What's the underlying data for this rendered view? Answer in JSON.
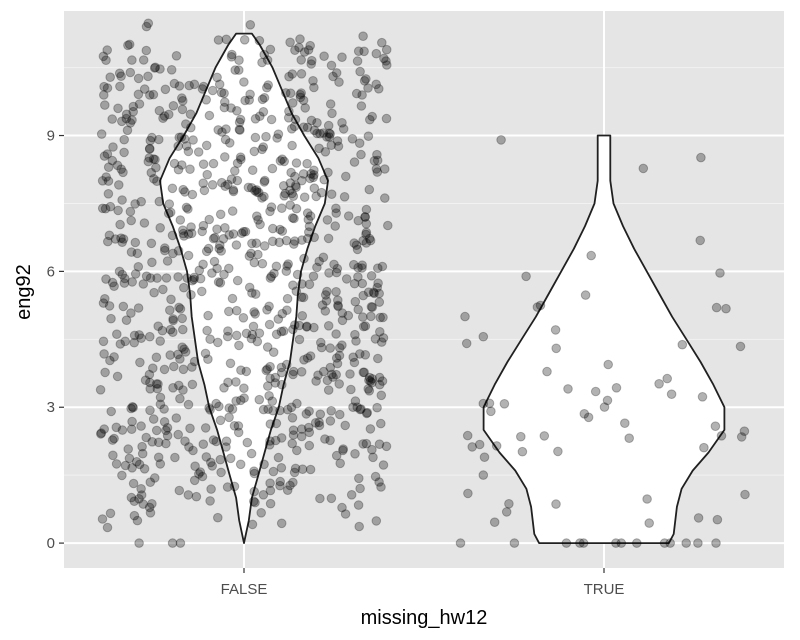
{
  "chart_data": {
    "type": "violin",
    "xlabel": "missing_hw12",
    "ylabel": "eng92",
    "categories": [
      "FALSE",
      "TRUE"
    ],
    "ylim": [
      -0.55,
      11.75
    ],
    "yticks": [
      0,
      3,
      6,
      9
    ],
    "y_minor_ticks": [
      1.5,
      4.5,
      7.5,
      10.5
    ],
    "grid": true,
    "violins": [
      {
        "category": "FALSE",
        "y_range": [
          0,
          11.25
        ],
        "profile": [
          [
            0.0,
            0.0
          ],
          [
            0.5,
            0.03
          ],
          [
            1.0,
            0.05
          ],
          [
            1.5,
            0.09
          ],
          [
            2.0,
            0.13
          ],
          [
            2.5,
            0.17
          ],
          [
            3.0,
            0.22
          ],
          [
            3.5,
            0.25
          ],
          [
            4.0,
            0.29
          ],
          [
            4.5,
            0.31
          ],
          [
            5.0,
            0.33
          ],
          [
            5.5,
            0.34
          ],
          [
            6.0,
            0.36
          ],
          [
            6.5,
            0.4
          ],
          [
            7.0,
            0.45
          ],
          [
            7.5,
            0.51
          ],
          [
            8.0,
            0.53
          ],
          [
            8.5,
            0.47
          ],
          [
            9.0,
            0.38
          ],
          [
            9.5,
            0.3
          ],
          [
            10.0,
            0.24
          ],
          [
            10.5,
            0.18
          ],
          [
            11.0,
            0.1
          ],
          [
            11.25,
            0.05
          ]
        ]
      },
      {
        "category": "TRUE",
        "y_range": [
          0,
          9
        ],
        "profile": [
          [
            0.0,
            0.41
          ],
          [
            0.2,
            0.44
          ],
          [
            0.5,
            0.45
          ],
          [
            0.8,
            0.46
          ],
          [
            1.2,
            0.49
          ],
          [
            1.6,
            0.56
          ],
          [
            2.0,
            0.66
          ],
          [
            2.5,
            0.76
          ],
          [
            3.0,
            0.76
          ],
          [
            3.5,
            0.69
          ],
          [
            4.0,
            0.61
          ],
          [
            4.5,
            0.52
          ],
          [
            5.0,
            0.43
          ],
          [
            5.5,
            0.35
          ],
          [
            6.0,
            0.27
          ],
          [
            6.5,
            0.19
          ],
          [
            7.0,
            0.12
          ],
          [
            7.5,
            0.06
          ],
          [
            8.0,
            0.04
          ],
          [
            8.5,
            0.04
          ],
          [
            9.0,
            0.04
          ]
        ]
      }
    ],
    "points": [
      {
        "category": "FALSE",
        "values": [
          9.5,
          8.2,
          7.8,
          8.5,
          9,
          10.3,
          6.9,
          5.3,
          4.3,
          3.2,
          2.7,
          1.7,
          0,
          10,
          7.3,
          4.8,
          3.7,
          6.5,
          5,
          9.2,
          8.7,
          7.5,
          6,
          4,
          2.4,
          11,
          10.5,
          3,
          5.5,
          6.2,
          7,
          8,
          9.7,
          2,
          1,
          0.7,
          4.5,
          5.8,
          6.8,
          8.3,
          9.1,
          3.5,
          2.9,
          4.1,
          5.2,
          7.6,
          8.8,
          10.9,
          1.4,
          6.4,
          7.9,
          5.6,
          4.6,
          3.8,
          9.9,
          2.2,
          0.6,
          8.1,
          6.1,
          3.1,
          10.7,
          7.1,
          4.9,
          5.9,
          2.5,
          9.3,
          8.6,
          1.9,
          6.7,
          3.4,
          10.1,
          7.4,
          4.4,
          5.4,
          9.6,
          2.8,
          8.4,
          0,
          6.3,
          3.6,
          11.2,
          7.7,
          4.2,
          5.1,
          9.4,
          2.3,
          8.9,
          1.2,
          6.6,
          10.4,
          3.3,
          7.2,
          4.7,
          5.7,
          9.8,
          2.6,
          8,
          0.5,
          6.9,
          10.6,
          3.9,
          7,
          4,
          5.3,
          9,
          2.1,
          8.5,
          6.5,
          1.5,
          10.2,
          3.5,
          7.5,
          4.5,
          5.5,
          9.5,
          2.9,
          8.2,
          0.9,
          6,
          10.8,
          3.2,
          7.8,
          4.3,
          5,
          9.2,
          2.4,
          8.7,
          6.2,
          1.8,
          10,
          3,
          7.3,
          4.8,
          5.8,
          9.7,
          2.7,
          8.3,
          0,
          6.8,
          11,
          3.7,
          7.6,
          4.1,
          5.2,
          9.1,
          2,
          8.8,
          6.4,
          1.1,
          10.3,
          3.4,
          7.9,
          4.6,
          5.6,
          9.9,
          2.5,
          8.1,
          6.1,
          1.6,
          10.5,
          3.1,
          7.1,
          4.9,
          5.9,
          9.3,
          2.2,
          8.6,
          6.7,
          0.8,
          10.7,
          3.8,
          7.4,
          4.4,
          5.4,
          9.6,
          2.8,
          8.4,
          6.3,
          1.3,
          10.9,
          3.6,
          7.7,
          4.2,
          5.1,
          9.4,
          2.3,
          8.9,
          6.6,
          1.7,
          10.1,
          3.3,
          7.2,
          4.7,
          5.7,
          9.8,
          2.6,
          8,
          6.9,
          0.6,
          11.2,
          3.9,
          7.5,
          4,
          5.3,
          9,
          2.1,
          8.5,
          6.5,
          1.4,
          10.4,
          3.5,
          7.8,
          4.5,
          5.5,
          9.5,
          2.9,
          8.2,
          6,
          1.9,
          10.6,
          3.2,
          7.3,
          4.3,
          5,
          9.2,
          2.4,
          8.7,
          6.2,
          1,
          10.2,
          3,
          7.6,
          4.8,
          5.8,
          9.7,
          2.7,
          8.3,
          6.8,
          1.5,
          10.8,
          3.7,
          7.9,
          4.1,
          5.2,
          9.1,
          2,
          8.8,
          6.4,
          1.2,
          11,
          3.4,
          7.1,
          4.6,
          5.6,
          9.9,
          2.5,
          8.1,
          6.1,
          0.9,
          10,
          3.1,
          7.4,
          4.9,
          5.9,
          9.3,
          2.2,
          8.6,
          6.7,
          1.8,
          10.3,
          3.8,
          7.7,
          4.4,
          5.4,
          9.6,
          2.8,
          8.4,
          6.3,
          1.1,
          10.5,
          3.6,
          7.2,
          4.2,
          5.1,
          9.4,
          2.3,
          8.9,
          6.6,
          1.6,
          10.7,
          3.3,
          7.5,
          4.7,
          5.7,
          9.8,
          2.6,
          8,
          6.9,
          0.7,
          10.9,
          3.9,
          7,
          4,
          5.3,
          9,
          2.1,
          8.5,
          6.5,
          1.3,
          10.1,
          3.5,
          7.8,
          4.5,
          5.5,
          9.5,
          2.9,
          8.2,
          6,
          1.7,
          11.2,
          3.2,
          7.3,
          4.3,
          5,
          9.2,
          2.4,
          8.7,
          6.2,
          1,
          10.4,
          3,
          7.6,
          4.8,
          5.8,
          9.7,
          2.7,
          8.3,
          6.8,
          1.4,
          10.6,
          3.7,
          7.9,
          4.1,
          5.2,
          9.1,
          2,
          8.8,
          6.4,
          1.9,
          10.2,
          3.4,
          7.1,
          4.6,
          5.6,
          9.9,
          2.5,
          8.1,
          6.1,
          0.5,
          10.8,
          3.1,
          7.4,
          4.9,
          5.9,
          9.3,
          2.2,
          8.6,
          6.7,
          1.5,
          11,
          3.8,
          7.7,
          4.4,
          5.4,
          9.6,
          2.8,
          8.4,
          6.3,
          1.2,
          10,
          3.6,
          7.2,
          4.2,
          5.1,
          9.4,
          2.3,
          8.9,
          6.6,
          1.8,
          10.3,
          3.3,
          7.5,
          4.7,
          5.7,
          9.8,
          2.6,
          8,
          6.9,
          0.9,
          10.5,
          3.9,
          7,
          4,
          5.3,
          9,
          2.1,
          8.5,
          6.5,
          1.1,
          10.7,
          3.5,
          7.8,
          4.5,
          5.5,
          9.5,
          2.9,
          8.2,
          6,
          1.6,
          10.9,
          3.2,
          7.3,
          4.3,
          5,
          9.2,
          2.4,
          8.7,
          6.2,
          0.7,
          10.1,
          3,
          7.6,
          4.8,
          5.8,
          9.7,
          2.7,
          8.3,
          6.8,
          1.3,
          11.2,
          3.7,
          7.9,
          4.1,
          5.2,
          9.1,
          2,
          8.8,
          6.4,
          1.7,
          10.4,
          3.4,
          7.1,
          4.6,
          5.6,
          9.9,
          2.5,
          8.1,
          6.1,
          1,
          10.6,
          3.1,
          7.4,
          4.9,
          5.9,
          9.3,
          2.2,
          8.6,
          6.7,
          1.4,
          10.2,
          3.8,
          7.7,
          4.4,
          5.4,
          9.6,
          2.8,
          8.4,
          6.3,
          1.9,
          10.8,
          3.6,
          7.2,
          4.2,
          5.1,
          9.4,
          2.3,
          8.9,
          6.6,
          0.5,
          11,
          3.3,
          7.5,
          4.7,
          5.7,
          9.8,
          2.6,
          8,
          6.9,
          1.5,
          10,
          3.9,
          7,
          4,
          5.3,
          9,
          2.1,
          8.5,
          6.5,
          1.2,
          10.3,
          3.5,
          7.8,
          4.5,
          5.5,
          9.5,
          2.9,
          8.2,
          6,
          1.8,
          10.5,
          3.2,
          7.3,
          4.3,
          5,
          9.2,
          2.4,
          8.7,
          6.2,
          0.9,
          10.7,
          3,
          7.6,
          4.8,
          5.8,
          9.7,
          2.7,
          8.3,
          6.8,
          1.1,
          10.9,
          3.7,
          7.9,
          4.1,
          5.2,
          9.1,
          2,
          8.8,
          6.4,
          1.6,
          10.1,
          3.4,
          7.1,
          4.6,
          5.6,
          9.9,
          2.5,
          8.1,
          6.1,
          0.7,
          11.2,
          3.1,
          7.4,
          4.9,
          5.9,
          9.3,
          2.2,
          8.6,
          6.7,
          1.3,
          10.4,
          3.8,
          7.7,
          4.4,
          5.4,
          9.6,
          2.8,
          8.4,
          6.3,
          1.7,
          10.6,
          3.6,
          7.2,
          4.2,
          5.1,
          9.4,
          2.3,
          8.9,
          6.6,
          1,
          10.2,
          3.3,
          7.5,
          4.7,
          5.7,
          9.8,
          2.6,
          8,
          6.9,
          1.4,
          10.8,
          3.9,
          7,
          4,
          5.3,
          9,
          2.1,
          8.5,
          6.5,
          1.9,
          11,
          3.5,
          7.8,
          4.5,
          5.5,
          9.5,
          2.9,
          8.2,
          6,
          0.5,
          10,
          3.2,
          7.3,
          4.3,
          5,
          9.2,
          2.4,
          8.7,
          6.2,
          1.5,
          10.3,
          3,
          7.6,
          4.8,
          5.8,
          9.7,
          2.7,
          8.3,
          6.8,
          1.2,
          10.5,
          3.7,
          7.9,
          4.1,
          5.2,
          9.1,
          2,
          8.8,
          6.4,
          1.8,
          10.7,
          3.4,
          7.1,
          4.6,
          5.6,
          9.9,
          2.5,
          8.1,
          6.1,
          0.9,
          10.9,
          3.1,
          7.4,
          4.9,
          5.9,
          9.3,
          2.2,
          8.6,
          6.7,
          1.1,
          10.1,
          3.8,
          7.7,
          4.4,
          5.4,
          9.6,
          2.8,
          8.4,
          6.3,
          1.6,
          11.2,
          3.6,
          7.2,
          4.2,
          5.1,
          9.4,
          2.3,
          8.9,
          6.6,
          0.7,
          10.4,
          3.3,
          7.5,
          4.7,
          5.7,
          9.8,
          2.6,
          8,
          6.9,
          1.3,
          10.6,
          3.9,
          7,
          4,
          5.3,
          9,
          2.1,
          8.5,
          6.5,
          1.7,
          10.2,
          3.5,
          7.8,
          4.5,
          5.5,
          9.5,
          2.9,
          8.2,
          6,
          1,
          10.8,
          3.2,
          7.3,
          4.3,
          5,
          9.2,
          2.4,
          8.7,
          6.2,
          1.4,
          11,
          3,
          7.6,
          4.8,
          5.8,
          9.7,
          2.7,
          8.3,
          6.8,
          1.9,
          10,
          3.7,
          7.9,
          4.1,
          5.2,
          9.1,
          2,
          8.8,
          6.4,
          0.5,
          10.3,
          3.4,
          7.1,
          4.6,
          5.6,
          9.9,
          2.5,
          8.1,
          6.1,
          1.5,
          10.5,
          3.1,
          7.4,
          4.9,
          5.9,
          9.3,
          2.2,
          8.6,
          6.7,
          1.2,
          10.7,
          3.8,
          7.7,
          4.4,
          5.4,
          9.6,
          2.8,
          8.4,
          6.3,
          1.8,
          10.9,
          3.6,
          7.2,
          4.2,
          5.1,
          9.4,
          2.3,
          8.9,
          6.6,
          0.9,
          10.1,
          3.3,
          7.5,
          4.7,
          5.7,
          9.8,
          2.6,
          8,
          6.9,
          1.1,
          11.2,
          3.9,
          7,
          4,
          5.3,
          9,
          2.1,
          8.5,
          6.5,
          1.6,
          10.4,
          3.5,
          7.8,
          4.5,
          5.5,
          9.5,
          2.9,
          8.2,
          6,
          0.7,
          10.6,
          3.2,
          7.3,
          4.3,
          5,
          9.2,
          2.4,
          8.7,
          6.2,
          1.3,
          10.2,
          3,
          7.6,
          4.8,
          5.8,
          9.7,
          2.7,
          8.3,
          6.8,
          1.7,
          10.8,
          3.7,
          7.9,
          4.1,
          5.2,
          9.1,
          2,
          8.8,
          6.4,
          1,
          11,
          3.4,
          7.1,
          4.6,
          5.6,
          9.9,
          2.5,
          8.1,
          6.1,
          1.4,
          10,
          3.1,
          7.4,
          4.9,
          5.9,
          9.3,
          2.2,
          8.6,
          6.7,
          1.9,
          10.3,
          3.8,
          7.7,
          4.4,
          5.4,
          9.6,
          2.8,
          8.4,
          6.3,
          0.5,
          10.5,
          3.6,
          7.2,
          4.2,
          5.1,
          9.4,
          2.3,
          8.9,
          6.6,
          1.5,
          10.7,
          3.3,
          7.5,
          4.7,
          5.7,
          9.8,
          2.6,
          8,
          6.9,
          1.2,
          10.9,
          3.9,
          7,
          4,
          5.3,
          9,
          2.1,
          8.5,
          6.5,
          1.8,
          10.1,
          3.5,
          7.8,
          4.5,
          5.5,
          9.5,
          2.9,
          8.2,
          6
        ]
      },
      {
        "category": "TRUE",
        "values": [
          9,
          8.4,
          8.1,
          6.7,
          6.3,
          5.9,
          5.8,
          5.7,
          5.3,
          5,
          5,
          5,
          5,
          4.5,
          4.4,
          4.3,
          4.2,
          4.2,
          4.2,
          4.2,
          3.8,
          3.7,
          3.7,
          3.5,
          3.5,
          3.4,
          3.3,
          3.3,
          3.2,
          3.1,
          3.1,
          3,
          3,
          3,
          2.9,
          2.6,
          2.5,
          2.5,
          2.5,
          2.5,
          2.5,
          2.4,
          2.4,
          2.3,
          2.3,
          2.3,
          2.2,
          2,
          2,
          2,
          1.8,
          1.7,
          1.3,
          1.3,
          1,
          1,
          1,
          0.8,
          0.7,
          0.5,
          0.4,
          0.3,
          0.3,
          0.2,
          0,
          0,
          0,
          0,
          0,
          0,
          0,
          0,
          0,
          0,
          0,
          0
        ]
      }
    ]
  },
  "style": {
    "panel_bg": "#e5e5e5",
    "grid_major": "#ffffff",
    "grid_minor": "#f2f2f2",
    "violin_fill": "#ffffff",
    "violin_stroke": "#202020",
    "point_color": "#000000",
    "point_alpha": 0.3
  }
}
